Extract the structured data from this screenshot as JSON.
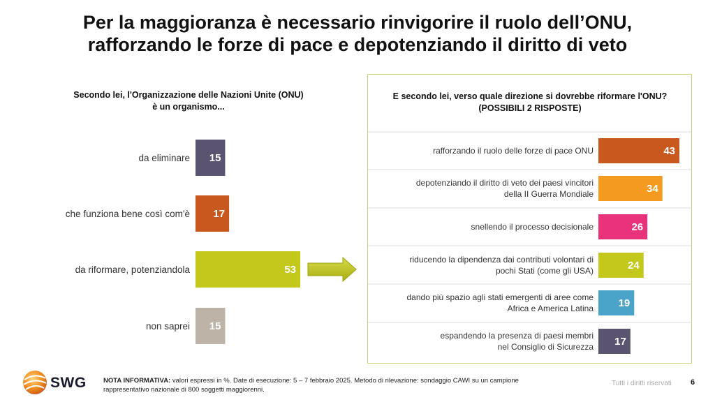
{
  "page": {
    "title_line1": "Per la maggioranza è necessario rinvigorire il ruolo dell’ONU,",
    "title_line2": "rafforzando le forze di pace e depotenziando il diritto di veto",
    "page_number": "6",
    "rights": "Tutti i diritti riservati",
    "logo_text": "SWG",
    "note_label": "NOTA INFORMATIVA:",
    "note_line1": "valori espressi in %. Date di esecuzione: 5 – 7 febbraio 2025. Metodo di rilevazione: sondaggio CAWI su un campione",
    "note_line2": "rappresentativo nazionale di 800 soggetti maggiorenni."
  },
  "chart_data": [
    {
      "type": "bar",
      "orientation": "horizontal",
      "title_line1": "Secondo lei, l'Organizzazione delle Nazioni Unite (ONU)",
      "title_line2": "è un organismo...",
      "categories": [
        "da eliminare",
        "che funziona bene così com'è",
        "da riformare, potenziandola",
        "non saprei"
      ],
      "values": [
        15,
        17,
        53,
        15
      ],
      "colors": [
        "#5b5470",
        "#c8581e",
        "#c3c81a",
        "#bdb3a6"
      ],
      "xlim": [
        0,
        100
      ],
      "grid": false,
      "legend": "none"
    },
    {
      "type": "bar",
      "orientation": "horizontal",
      "title_line1": "E secondo lei, verso quale direzione si dovrebbe riformare l'ONU?",
      "title_line2": "(POSSIBILI 2 RISPOSTE)",
      "categories": [
        [
          "rafforzando il ruolo delle forze di pace ONU"
        ],
        [
          "depotenziando il diritto di veto dei paesi vincitori",
          "della II Guerra Mondiale"
        ],
        [
          "snellendo il processo decisionale"
        ],
        [
          "riducendo la dipendenza dai contributi volontari di",
          "pochi Stati (come gli USA)"
        ],
        [
          "dando più spazio agli stati emergenti di aree come",
          "Africa e America Latina"
        ],
        [
          "espandendo la presenza di paesi membri",
          "nel Consiglio di Sicurezza"
        ]
      ],
      "values": [
        43,
        34,
        26,
        24,
        19,
        17
      ],
      "colors": [
        "#c8581e",
        "#f39a1f",
        "#e8327c",
        "#c3c81a",
        "#4aa3c8",
        "#5b5470"
      ],
      "xlim": [
        0,
        100
      ],
      "grid": false,
      "legend": "none"
    }
  ]
}
